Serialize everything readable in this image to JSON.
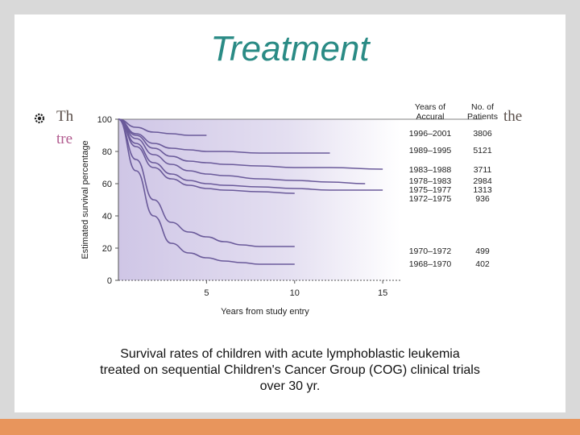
{
  "slide": {
    "title": "Treatment",
    "bullet": {
      "start": "Th",
      "end": "the",
      "continuation": "tre"
    },
    "caption": [
      "Survival rates of children with acute lymphoblastic leukemia",
      "treated on sequential Children's Cancer Group (COG) clinical trials",
      "over 30 yr."
    ],
    "colors": {
      "title": "#2a8b85",
      "bullet_text": "#5a4f4a",
      "bullet_continuation": "#b15a8e",
      "bottom_bar": "#e8955c",
      "curve": "#6a5a9a",
      "panel_fill": "#d8d2ea"
    }
  },
  "chart_data": {
    "type": "line",
    "xlabel": "Years from study entry",
    "ylabel": "Estimated survival percentage",
    "x_ticks": [
      5,
      10,
      15
    ],
    "y_ticks": [
      0,
      20,
      40,
      60,
      80,
      100
    ],
    "xlim": [
      0,
      16
    ],
    "ylim": [
      0,
      100
    ],
    "legend_headers": {
      "years": "Years of Accural",
      "years_lines": [
        "Years of",
        "Accural"
      ],
      "patients_lines": [
        "No. of",
        "Patients"
      ]
    },
    "series": [
      {
        "name": "1996–2001",
        "patients": "3806",
        "x": [
          0,
          1,
          2,
          3,
          4,
          5
        ],
        "y": [
          100,
          95,
          92,
          91,
          90,
          90
        ]
      },
      {
        "name": "1989–1995",
        "patients": "5121",
        "x": [
          0,
          1,
          2,
          3,
          4,
          5,
          6,
          8,
          10,
          12
        ],
        "y": [
          100,
          91,
          85,
          82,
          81,
          80,
          80,
          79,
          79,
          79
        ]
      },
      {
        "name": "1983–1988",
        "patients": "3711",
        "x": [
          0,
          1,
          2,
          3,
          4,
          5,
          6,
          8,
          10,
          12,
          15
        ],
        "y": [
          100,
          90,
          82,
          77,
          74,
          73,
          72,
          71,
          70,
          70,
          69
        ]
      },
      {
        "name": "1978–1983",
        "patients": "2984",
        "x": [
          0,
          1,
          2,
          3,
          4,
          5,
          6,
          8,
          10,
          12,
          14
        ],
        "y": [
          100,
          88,
          78,
          72,
          68,
          66,
          65,
          63,
          62,
          61,
          60
        ]
      },
      {
        "name": "1975–1977",
        "patients": "1313",
        "x": [
          0,
          1,
          2,
          3,
          4,
          5,
          6,
          8,
          10,
          12,
          15
        ],
        "y": [
          100,
          85,
          73,
          66,
          62,
          60,
          59,
          58,
          57,
          56,
          56
        ]
      },
      {
        "name": "1972–1975",
        "patients": "936",
        "x": [
          0,
          1,
          2,
          3,
          4,
          5,
          6,
          8,
          10
        ],
        "y": [
          100,
          83,
          70,
          63,
          59,
          57,
          56,
          55,
          54
        ]
      },
      {
        "name": "1970–1972",
        "patients": "499",
        "x": [
          0,
          1,
          2,
          3,
          4,
          5,
          6,
          7,
          8,
          10
        ],
        "y": [
          100,
          75,
          50,
          36,
          30,
          27,
          24,
          22,
          21,
          21
        ]
      },
      {
        "name": "1968–1970",
        "patients": "402",
        "x": [
          0,
          1,
          2,
          3,
          4,
          5,
          6,
          7,
          8,
          10
        ],
        "y": [
          100,
          68,
          40,
          23,
          17,
          14,
          12,
          11,
          10,
          10
        ]
      }
    ]
  }
}
